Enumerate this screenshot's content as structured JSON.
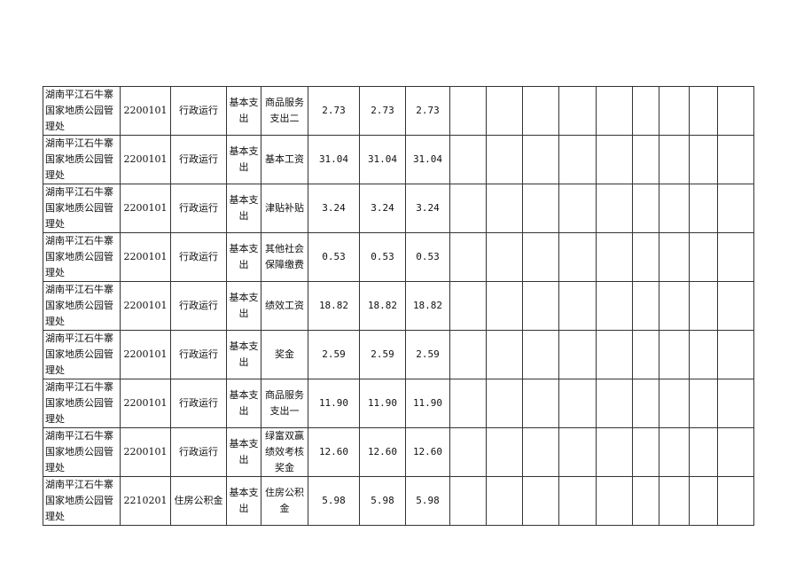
{
  "rows": [
    {
      "unit": "湖南平江石牛寨国家地质公园管理处",
      "code": "2200101",
      "func": "行政运行",
      "type": "基本支出",
      "item": "商品服务支出二",
      "a": "2.73",
      "b": "2.73",
      "c": "2.73"
    },
    {
      "unit": "湖南平江石牛寨国家地质公园管理处",
      "code": "2200101",
      "func": "行政运行",
      "type": "基本支出",
      "item": "基本工资",
      "a": "31.04",
      "b": "31.04",
      "c": "31.04"
    },
    {
      "unit": "湖南平江石牛寨国家地质公园管理处",
      "code": "2200101",
      "func": "行政运行",
      "type": "基本支出",
      "item": "津贴补贴",
      "a": "3.24",
      "b": "3.24",
      "c": "3.24"
    },
    {
      "unit": "湖南平江石牛寨国家地质公园管理处",
      "code": "2200101",
      "func": "行政运行",
      "type": "基本支出",
      "item": "其他社会保障缴费",
      "a": "0.53",
      "b": "0.53",
      "c": "0.53"
    },
    {
      "unit": "湖南平江石牛寨国家地质公园管理处",
      "code": "2200101",
      "func": "行政运行",
      "type": "基本支出",
      "item": "绩效工资",
      "a": "18.82",
      "b": "18.82",
      "c": "18.82"
    },
    {
      "unit": "湖南平江石牛寨国家地质公园管理处",
      "code": "2200101",
      "func": "行政运行",
      "type": "基本支出",
      "item": "奖金",
      "a": "2.59",
      "b": "2.59",
      "c": "2.59"
    },
    {
      "unit": "湖南平江石牛寨国家地质公园管理处",
      "code": "2200101",
      "func": "行政运行",
      "type": "基本支出",
      "item": "商品服务支出一",
      "a": "11.90",
      "b": "11.90",
      "c": "11.90"
    },
    {
      "unit": "湖南平江石牛寨国家地质公园管理处",
      "code": "2200101",
      "func": "行政运行",
      "type": "基本支出",
      "item": "绿富双赢绩效考核奖金",
      "a": "12.60",
      "b": "12.60",
      "c": "12.60"
    },
    {
      "unit": "湖南平江石牛寨国家地质公园管理处",
      "code": "2210201",
      "func": "住房公积金",
      "type": "基本支出",
      "item": "住房公积金",
      "a": "5.98",
      "b": "5.98",
      "c": "5.98"
    }
  ]
}
